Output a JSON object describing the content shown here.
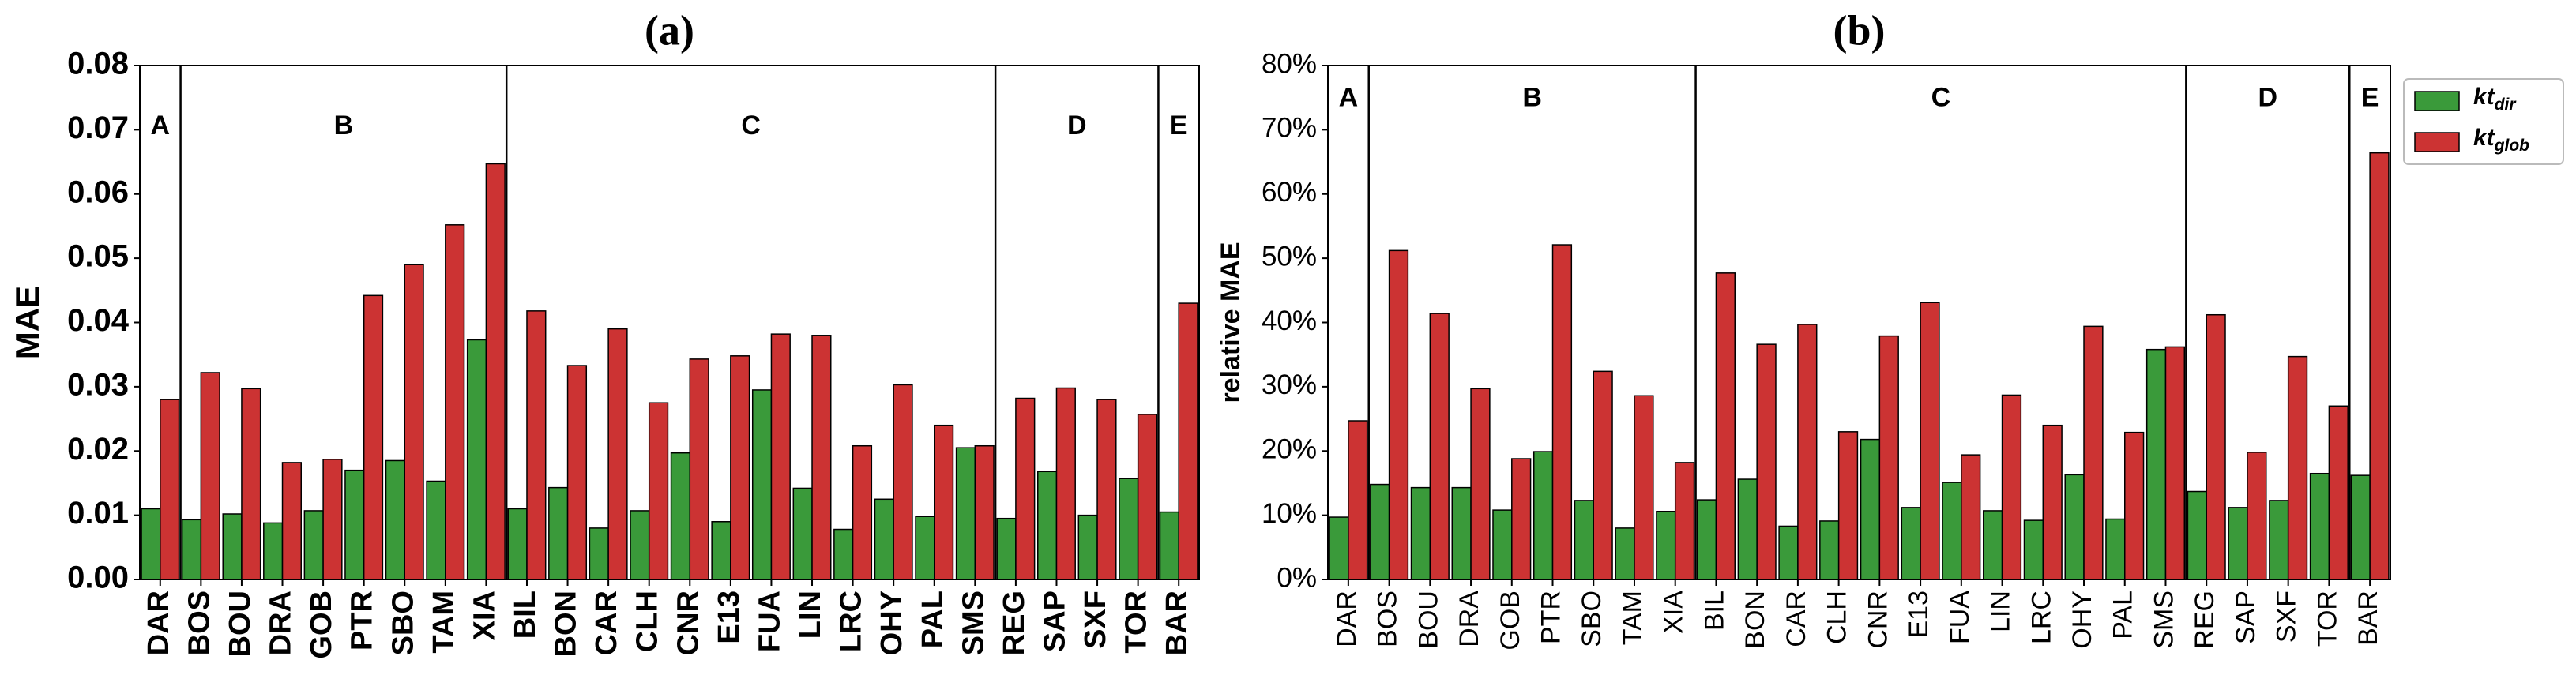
{
  "chart_data": [
    {
      "type": "bar",
      "title": "(a)",
      "y_label": "MAE",
      "categories": [
        "DAR",
        "BOS",
        "BOU",
        "DRA",
        "GOB",
        "PTR",
        "SBO",
        "TAM",
        "XIA",
        "BIL",
        "BON",
        "CAR",
        "CLH",
        "CNR",
        "E13",
        "FUA",
        "LIN",
        "LRC",
        "OHY",
        "PAL",
        "SMS",
        "REG",
        "SAP",
        "SXF",
        "TOR",
        "BAR"
      ],
      "category_groups": [
        "A",
        "B",
        "B",
        "B",
        "B",
        "B",
        "B",
        "B",
        "B",
        "C",
        "C",
        "C",
        "C",
        "C",
        "C",
        "C",
        "C",
        "C",
        "C",
        "C",
        "C",
        "D",
        "D",
        "D",
        "D",
        "E"
      ],
      "series": [
        {
          "name": "kt_dir",
          "color": "#3a9a3a",
          "values": [
            0.011,
            0.0093,
            0.0102,
            0.0088,
            0.0107,
            0.017,
            0.0185,
            0.0153,
            0.0373,
            0.011,
            0.0143,
            0.008,
            0.0107,
            0.0197,
            0.009,
            0.0295,
            0.0142,
            0.0078,
            0.0125,
            0.0098,
            0.0205,
            0.0095,
            0.0168,
            0.01,
            0.0157,
            0.0105
          ]
        },
        {
          "name": "kt_glob",
          "color": "#cc3333",
          "values": [
            0.028,
            0.0322,
            0.0297,
            0.0182,
            0.0187,
            0.0442,
            0.049,
            0.0552,
            0.0647,
            0.0418,
            0.0333,
            0.039,
            0.0275,
            0.0343,
            0.0348,
            0.0382,
            0.038,
            0.0208,
            0.0303,
            0.024,
            0.0208,
            0.0282,
            0.0298,
            0.028,
            0.0257,
            0.043
          ]
        }
      ],
      "ylim": [
        0,
        0.08
      ],
      "yticks": [
        {
          "value": 0,
          "label": "0.00"
        },
        {
          "value": 0.01,
          "label": "0.01"
        },
        {
          "value": 0.02,
          "label": "0.02"
        },
        {
          "value": 0.03,
          "label": "0.03"
        },
        {
          "value": 0.04,
          "label": "0.04"
        },
        {
          "value": 0.05,
          "label": "0.05"
        },
        {
          "value": 0.06,
          "label": "0.06"
        },
        {
          "value": 0.07,
          "label": "0.07"
        },
        {
          "value": 0.08,
          "label": "0.08"
        }
      ],
      "bold_ticks": true
    },
    {
      "type": "bar",
      "title": "(b)",
      "y_label": "relative MAE",
      "categories": [
        "DAR",
        "BOS",
        "BOU",
        "DRA",
        "GOB",
        "PTR",
        "SBO",
        "TAM",
        "XIA",
        "BIL",
        "BON",
        "CAR",
        "CLH",
        "CNR",
        "E13",
        "FUA",
        "LIN",
        "LRC",
        "OHY",
        "PAL",
        "SMS",
        "REG",
        "SAP",
        "SXF",
        "TOR",
        "BAR"
      ],
      "category_groups": [
        "A",
        "B",
        "B",
        "B",
        "B",
        "B",
        "B",
        "B",
        "B",
        "C",
        "C",
        "C",
        "C",
        "C",
        "C",
        "C",
        "C",
        "C",
        "C",
        "C",
        "C",
        "D",
        "D",
        "D",
        "D",
        "E"
      ],
      "series": [
        {
          "name": "kt_dir",
          "color": "#3a9a3a",
          "values": [
            9.7,
            14.8,
            14.3,
            14.3,
            10.8,
            19.9,
            12.3,
            8.0,
            10.6,
            12.4,
            15.6,
            8.3,
            9.1,
            21.8,
            11.2,
            15.1,
            10.7,
            9.2,
            16.3,
            9.4,
            35.8,
            13.7,
            11.2,
            12.3,
            16.5,
            16.2
          ]
        },
        {
          "name": "kt_glob",
          "color": "#cc3333",
          "values": [
            24.7,
            51.2,
            41.4,
            29.7,
            18.8,
            52.1,
            32.4,
            28.6,
            18.2,
            47.7,
            36.6,
            39.7,
            23.0,
            37.9,
            43.1,
            19.4,
            28.7,
            24.0,
            39.4,
            22.9,
            36.2,
            41.2,
            19.8,
            34.7,
            27.0,
            66.4
          ]
        }
      ],
      "ylim": [
        0,
        80
      ],
      "yticks": [
        {
          "value": 0,
          "label": "0%"
        },
        {
          "value": 10,
          "label": "10%"
        },
        {
          "value": 20,
          "label": "20%"
        },
        {
          "value": 30,
          "label": "30%"
        },
        {
          "value": 40,
          "label": "40%"
        },
        {
          "value": 50,
          "label": "50%"
        },
        {
          "value": 60,
          "label": "60%"
        },
        {
          "value": 70,
          "label": "70%"
        },
        {
          "value": 80,
          "label": "80%"
        }
      ],
      "bold_ticks": false,
      "legend": "outside-upper-right"
    }
  ]
}
